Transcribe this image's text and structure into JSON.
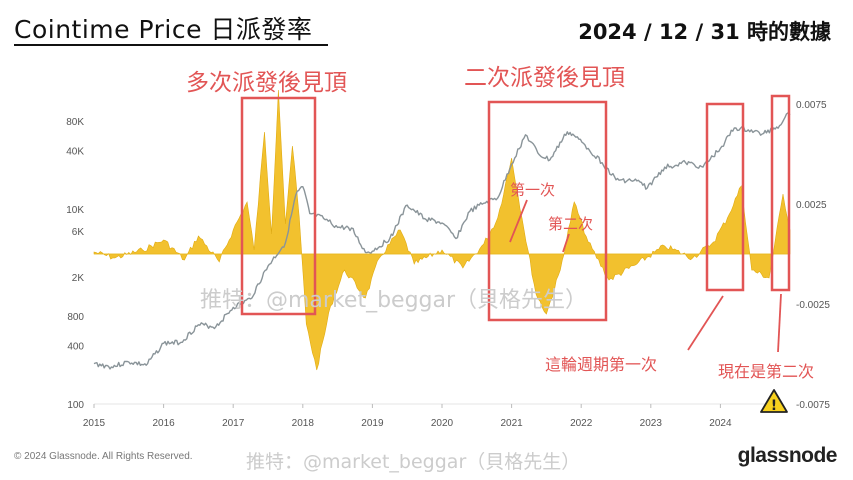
{
  "header": {
    "title": "Cointime Price 日派發率",
    "date": "2024 / 12 / 31 時的數據"
  },
  "footer": {
    "copyright": "© 2024 Glassnode. All Rights Reserved.",
    "brand": "glassnode"
  },
  "watermark": {
    "text1": "推特：@market_beggar（貝格先生）",
    "text2": "推特：@market_beggar（貝格先生）"
  },
  "annotations": {
    "box1_label": "多次派發後見頂",
    "box2_label": "二次派發後見頂",
    "first_label": "第一次",
    "second_label": "第二次",
    "cycle_label": "這輪週期第一次",
    "now_label": "現在是第二次",
    "warning_symbol": "!"
  },
  "chart_data": {
    "type": "line",
    "x_ticks": [
      "2015",
      "2016",
      "2017",
      "2018",
      "2019",
      "2020",
      "2021",
      "2022",
      "2023",
      "2024"
    ],
    "y_left_ticks": [
      "80K",
      "40K",
      "10K",
      "6K",
      "2K",
      "800",
      "400",
      "100"
    ],
    "y_left_scale": "log",
    "y_right_ticks": [
      "0.0075",
      "0.0025",
      "-0.0025",
      "-0.0075"
    ],
    "ylim_right": [
      -0.0075,
      0.0075
    ],
    "grid": false,
    "series": [
      {
        "role": "price",
        "axis": "left",
        "color": "#8a9499",
        "points": [
          [
            "2015.00",
            260
          ],
          [
            "2015.25",
            240
          ],
          [
            "2015.50",
            270
          ],
          [
            "2015.75",
            250
          ],
          [
            "2016.00",
            420
          ],
          [
            "2016.25",
            430
          ],
          [
            "2016.50",
            650
          ],
          [
            "2016.75",
            620
          ],
          [
            "2017.00",
            980
          ],
          [
            "2017.25",
            1200
          ],
          [
            "2017.50",
            2600
          ],
          [
            "2017.75",
            4500
          ],
          [
            "2017.90",
            14000
          ],
          [
            "2018.00",
            17000
          ],
          [
            "2018.10",
            9000
          ],
          [
            "2018.30",
            8000
          ],
          [
            "2018.50",
            6500
          ],
          [
            "2018.70",
            6400
          ],
          [
            "2018.90",
            3600
          ],
          [
            "2019.00",
            3700
          ],
          [
            "2019.25",
            5000
          ],
          [
            "2019.50",
            11000
          ],
          [
            "2019.75",
            8000
          ],
          [
            "2020.00",
            7200
          ],
          [
            "2020.20",
            5000
          ],
          [
            "2020.40",
            9500
          ],
          [
            "2020.60",
            11500
          ],
          [
            "2020.80",
            13000
          ],
          [
            "2021.00",
            29000
          ],
          [
            "2021.20",
            58000
          ],
          [
            "2021.40",
            36000
          ],
          [
            "2021.55",
            32000
          ],
          [
            "2021.80",
            62000
          ],
          [
            "2021.90",
            57000
          ],
          [
            "2022.10",
            42000
          ],
          [
            "2022.30",
            30000
          ],
          [
            "2022.50",
            20000
          ],
          [
            "2022.80",
            19500
          ],
          [
            "2022.95",
            16500
          ],
          [
            "2023.20",
            27000
          ],
          [
            "2023.50",
            30000
          ],
          [
            "2023.75",
            27000
          ],
          [
            "2024.00",
            42000
          ],
          [
            "2024.20",
            68000
          ],
          [
            "2024.40",
            65000
          ],
          [
            "2024.60",
            59000
          ],
          [
            "2024.85",
            72000
          ],
          [
            "2024.95",
            95000
          ],
          [
            "2025.00",
            93000
          ]
        ]
      },
      {
        "role": "distribution_rate",
        "axis": "right",
        "color": "#f2c12e",
        "points": [
          [
            "2015.00",
            0.0001
          ],
          [
            "2015.30",
            -0.0002
          ],
          [
            "2015.70",
            0.0002
          ],
          [
            "2016.00",
            0.0007
          ],
          [
            "2016.30",
            -0.0003
          ],
          [
            "2016.50",
            0.0009
          ],
          [
            "2016.80",
            -0.0004
          ],
          [
            "2017.00",
            0.0012
          ],
          [
            "2017.20",
            0.0026
          ],
          [
            "2017.30",
            0.0002
          ],
          [
            "2017.45",
            0.0061
          ],
          [
            "2017.55",
            0.001
          ],
          [
            "2017.65",
            0.0082
          ],
          [
            "2017.75",
            0.0015
          ],
          [
            "2017.85",
            0.0054
          ],
          [
            "2017.95",
            0.0018
          ],
          [
            "2018.05",
            -0.0035
          ],
          [
            "2018.20",
            -0.0058
          ],
          [
            "2018.40",
            -0.0026
          ],
          [
            "2018.60",
            -0.0008
          ],
          [
            "2018.90",
            -0.0022
          ],
          [
            "2019.10",
            -0.0002
          ],
          [
            "2019.40",
            0.0012
          ],
          [
            "2019.60",
            -0.0005
          ],
          [
            "2020.00",
            0.0002
          ],
          [
            "2020.30",
            -0.0007
          ],
          [
            "2020.60",
            0.0005
          ],
          [
            "2020.80",
            0.0018
          ],
          [
            "2021.00",
            0.0048
          ],
          [
            "2021.15",
            0.0018
          ],
          [
            "2021.35",
            -0.002
          ],
          [
            "2021.50",
            -0.003
          ],
          [
            "2021.70",
            -0.0008
          ],
          [
            "2021.90",
            0.0026
          ],
          [
            "2022.10",
            0.0006
          ],
          [
            "2022.40",
            -0.0013
          ],
          [
            "2022.80",
            -0.0005
          ],
          [
            "2023.20",
            0.0004
          ],
          [
            "2023.60",
            -0.0002
          ],
          [
            "2023.90",
            0.0006
          ],
          [
            "2024.10",
            0.0018
          ],
          [
            "2024.30",
            0.0034
          ],
          [
            "2024.45",
            -0.0008
          ],
          [
            "2024.70",
            -0.0012
          ],
          [
            "2024.90",
            0.003
          ],
          [
            "2025.00",
            0.0012
          ]
        ]
      }
    ]
  }
}
